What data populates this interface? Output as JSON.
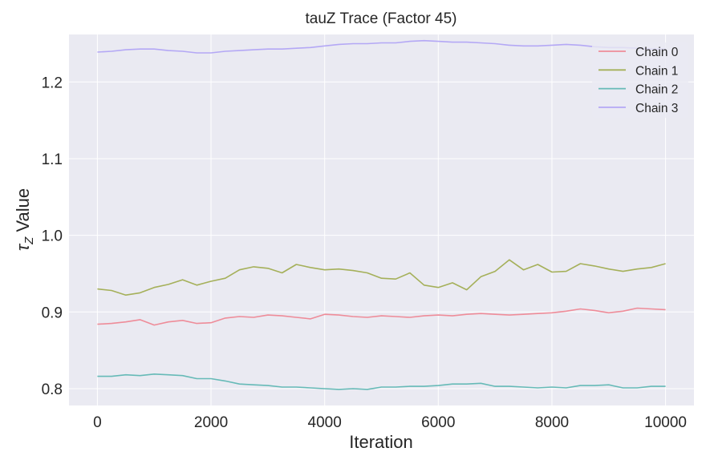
{
  "chart_data": {
    "type": "line",
    "title": "tauZ Trace (Factor 45)",
    "xlabel": "Iteration",
    "ylabel": "τ_Z Value",
    "ylabel_symbol": "τ",
    "ylabel_subscript": "Z",
    "ylabel_rest": " Value",
    "xlim": [
      -500,
      10500
    ],
    "ylim": [
      0.778,
      1.262
    ],
    "x_ticks": [
      0,
      2000,
      4000,
      6000,
      8000,
      10000
    ],
    "x_tick_labels": [
      "0",
      "2000",
      "4000",
      "6000",
      "8000",
      "10000"
    ],
    "y_ticks": [
      0.8,
      0.9,
      1.0,
      1.1,
      1.2
    ],
    "y_tick_labels": [
      "0.8",
      "0.9",
      "1.0",
      "1.1",
      "1.2"
    ],
    "grid": true,
    "legend_position": "top-right",
    "x": [
      0,
      250,
      500,
      750,
      1000,
      1250,
      1500,
      1750,
      2000,
      2250,
      2500,
      2750,
      3000,
      3250,
      3500,
      3750,
      4000,
      4250,
      4500,
      4750,
      5000,
      5250,
      5500,
      5750,
      6000,
      6250,
      6500,
      6750,
      7000,
      7250,
      7500,
      7750,
      8000,
      8250,
      8500,
      8750,
      9000,
      9250,
      9500,
      9750,
      10000
    ],
    "series": [
      {
        "name": "Chain 0",
        "color": "#ee8c99",
        "values": [
          0.884,
          0.885,
          0.887,
          0.89,
          0.883,
          0.887,
          0.889,
          0.885,
          0.886,
          0.892,
          0.894,
          0.893,
          0.896,
          0.895,
          0.893,
          0.891,
          0.897,
          0.896,
          0.894,
          0.893,
          0.895,
          0.894,
          0.893,
          0.895,
          0.896,
          0.895,
          0.897,
          0.898,
          0.897,
          0.896,
          0.897,
          0.898,
          0.899,
          0.901,
          0.904,
          0.902,
          0.899,
          0.901,
          0.905,
          0.904,
          0.903
        ]
      },
      {
        "name": "Chain 1",
        "color": "#a5b05a",
        "values": [
          0.93,
          0.928,
          0.922,
          0.925,
          0.932,
          0.936,
          0.942,
          0.935,
          0.94,
          0.944,
          0.955,
          0.959,
          0.957,
          0.951,
          0.962,
          0.958,
          0.955,
          0.956,
          0.954,
          0.951,
          0.944,
          0.943,
          0.951,
          0.935,
          0.932,
          0.938,
          0.929,
          0.946,
          0.953,
          0.968,
          0.955,
          0.962,
          0.952,
          0.953,
          0.963,
          0.96,
          0.956,
          0.953,
          0.956,
          0.958,
          0.963
        ]
      },
      {
        "name": "Chain 2",
        "color": "#66bab7",
        "values": [
          0.816,
          0.816,
          0.818,
          0.817,
          0.819,
          0.818,
          0.817,
          0.813,
          0.813,
          0.81,
          0.806,
          0.805,
          0.804,
          0.802,
          0.802,
          0.801,
          0.8,
          0.799,
          0.8,
          0.799,
          0.802,
          0.802,
          0.803,
          0.803,
          0.804,
          0.806,
          0.806,
          0.807,
          0.803,
          0.803,
          0.802,
          0.801,
          0.802,
          0.801,
          0.804,
          0.804,
          0.805,
          0.801,
          0.801,
          0.803,
          0.803
        ]
      },
      {
        "name": "Chain 3",
        "color": "#b4a8f5",
        "values": [
          1.239,
          1.24,
          1.242,
          1.243,
          1.243,
          1.241,
          1.24,
          1.238,
          1.238,
          1.24,
          1.241,
          1.242,
          1.243,
          1.243,
          1.244,
          1.245,
          1.247,
          1.249,
          1.25,
          1.25,
          1.251,
          1.251,
          1.253,
          1.254,
          1.253,
          1.252,
          1.252,
          1.251,
          1.25,
          1.248,
          1.247,
          1.247,
          1.248,
          1.249,
          1.248,
          1.246,
          1.245,
          1.245,
          1.244,
          1.243,
          1.243
        ]
      }
    ]
  }
}
